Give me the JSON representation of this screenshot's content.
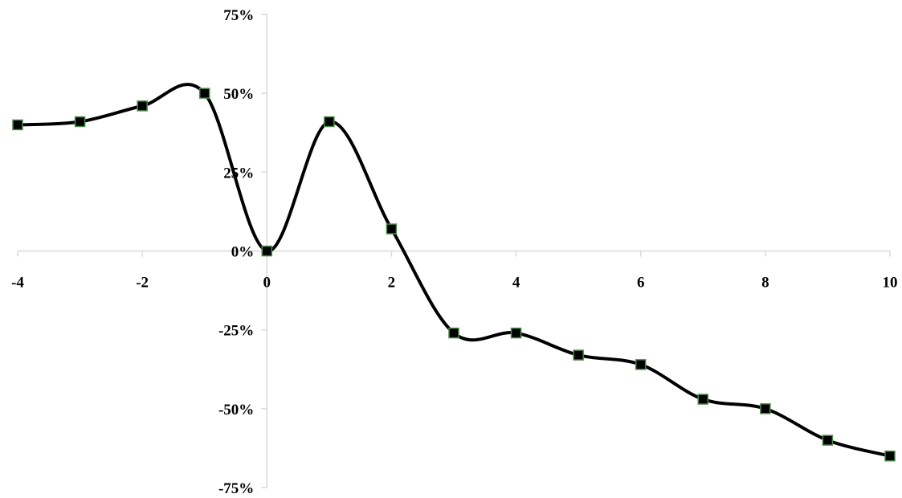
{
  "chart_data": {
    "type": "line",
    "title": "",
    "xlabel": "",
    "ylabel": "",
    "x": [
      -4,
      -3,
      -2,
      -1,
      0,
      1,
      2,
      3,
      4,
      5,
      6,
      7,
      8,
      9,
      10
    ],
    "series": [
      {
        "values": [
          0.4,
          0.41,
          0.46,
          0.5,
          0.0,
          0.41,
          0.07,
          -0.26,
          -0.26,
          -0.33,
          -0.36,
          -0.47,
          -0.5,
          -0.6,
          -0.65
        ],
        "line_color": "#000000",
        "marker": "square",
        "marker_fill": "#000000",
        "marker_edge": "#4a8a4a",
        "smooth": true
      }
    ],
    "xlim": [
      -4,
      10
    ],
    "ylim": [
      -0.75,
      0.75
    ],
    "x_ticks": [
      -4,
      -2,
      0,
      2,
      4,
      6,
      8,
      10
    ],
    "x_tick_labels": [
      "-4",
      "-2",
      "0",
      "2",
      "4",
      "6",
      "8",
      "10"
    ],
    "y_ticks": [
      -0.75,
      -0.5,
      -0.25,
      0,
      0.25,
      0.5,
      0.75
    ],
    "y_tick_labels": [
      "-75%",
      "-50%",
      "-25%",
      "0%",
      "25%",
      "50%",
      "75%"
    ],
    "axis_color": "#d9d9d9",
    "grid": false,
    "legend": "none"
  }
}
